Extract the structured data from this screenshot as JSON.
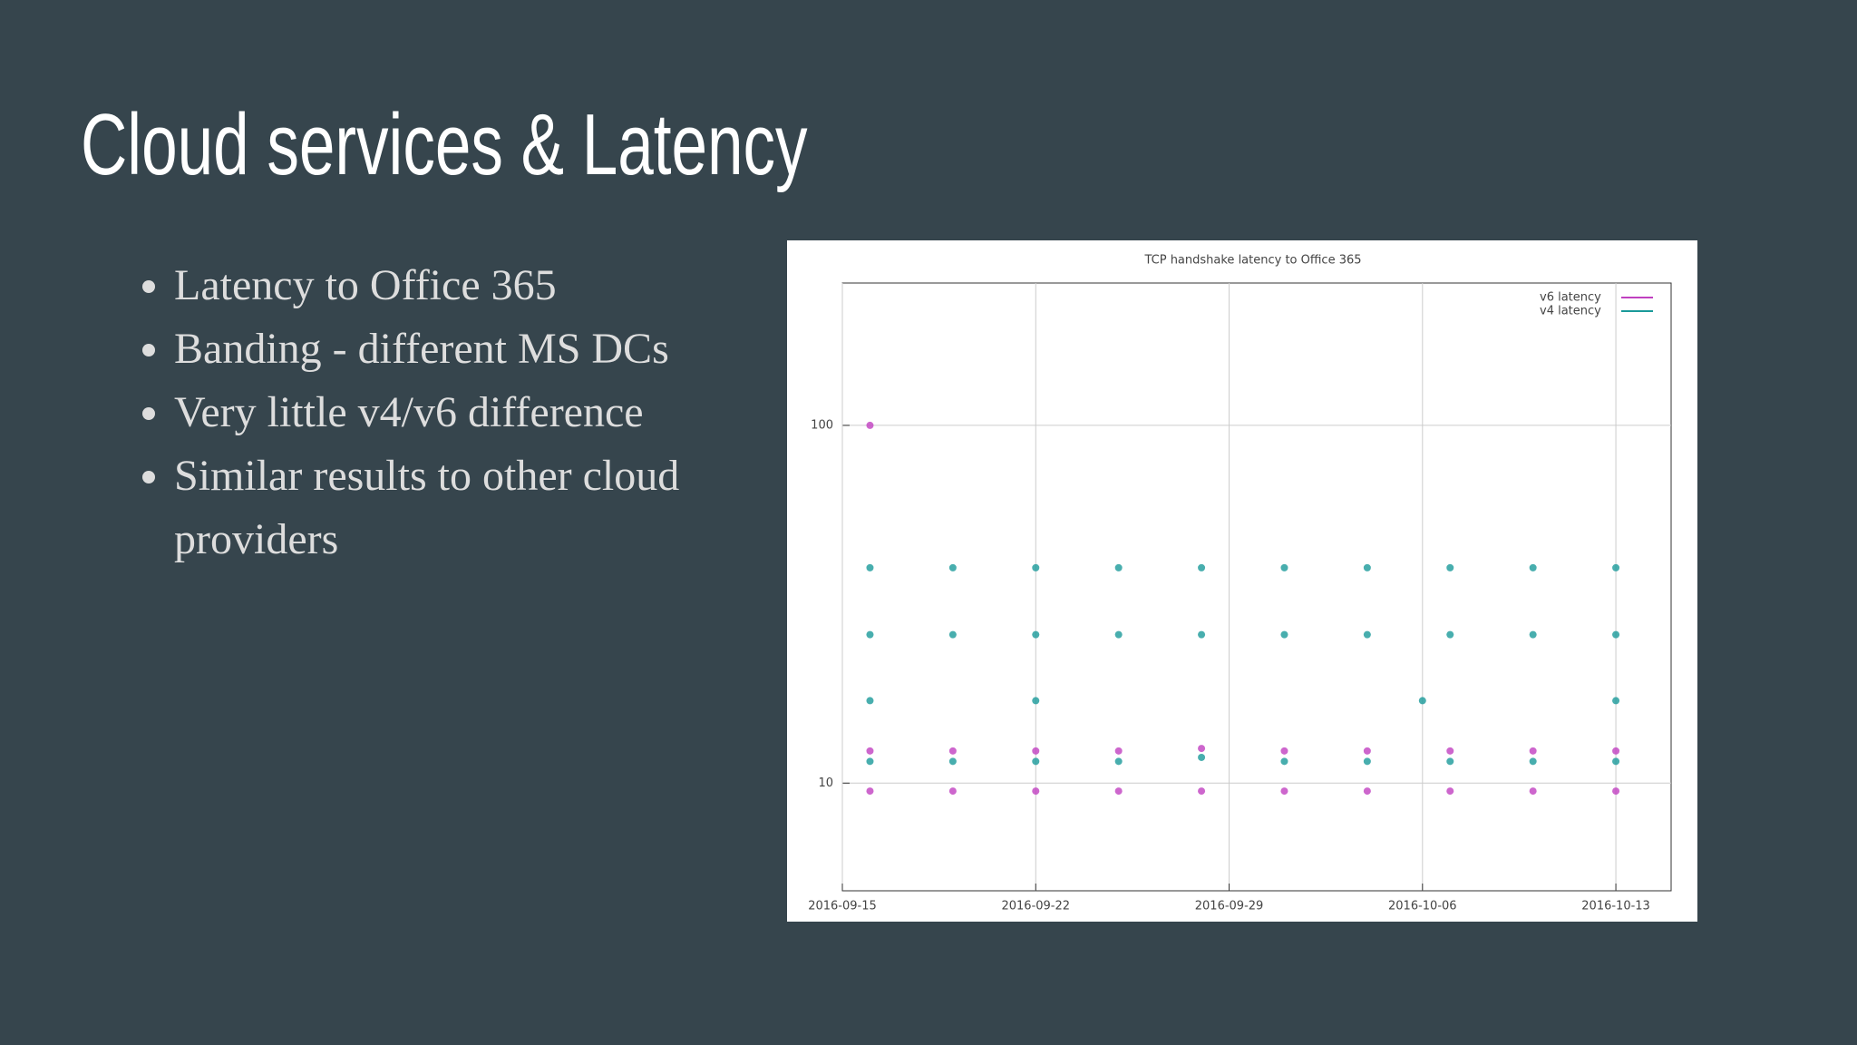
{
  "slide": {
    "title": "Cloud services & Latency",
    "bullets": [
      "Latency to Office 365",
      "Banding - different MS DCs",
      "Very little v4/v6 difference",
      "Similar results to other cloud providers"
    ]
  },
  "chart_data": {
    "type": "scatter",
    "title": "TCP handshake latency to Office 365",
    "log_y": true,
    "grid": true,
    "legend": "top-right",
    "xlim": [
      "2016-09-15",
      "2016-10-15"
    ],
    "xticks": [
      "2016-09-15",
      "2016-09-22",
      "2016-09-29",
      "2016-10-06",
      "2016-10-13"
    ],
    "ylim": [
      5,
      250
    ],
    "yticks": [
      10,
      100
    ],
    "series": [
      {
        "name": "v6 latency",
        "color": "#c040c0",
        "x": [
          "2016-09-16",
          "2016-09-19",
          "2016-09-22",
          "2016-09-25",
          "2016-09-28",
          "2016-10-01",
          "2016-10-04",
          "2016-10-07",
          "2016-10-10",
          "2016-10-13",
          "2016-09-16",
          "2016-09-19",
          "2016-09-22",
          "2016-09-25",
          "2016-09-28",
          "2016-10-01",
          "2016-10-04",
          "2016-10-07",
          "2016-10-10",
          "2016-10-13",
          "2016-09-16"
        ],
        "values": [
          12.3,
          12.3,
          12.3,
          12.3,
          12.5,
          12.3,
          12.3,
          12.3,
          12.3,
          12.3,
          9.5,
          9.5,
          9.5,
          9.5,
          9.5,
          9.5,
          9.5,
          9.5,
          9.5,
          9.5,
          100
        ]
      },
      {
        "name": "v4 latency",
        "color": "#1a9a9a",
        "x": [
          "2016-09-16",
          "2016-09-19",
          "2016-09-22",
          "2016-09-25",
          "2016-09-28",
          "2016-10-01",
          "2016-10-04",
          "2016-10-07",
          "2016-10-10",
          "2016-10-13",
          "2016-09-16",
          "2016-09-19",
          "2016-09-22",
          "2016-09-25",
          "2016-09-28",
          "2016-10-01",
          "2016-10-04",
          "2016-10-07",
          "2016-10-10",
          "2016-10-13",
          "2016-09-16",
          "2016-09-19",
          "2016-09-22",
          "2016-09-25",
          "2016-09-28",
          "2016-10-01",
          "2016-10-04",
          "2016-10-07",
          "2016-10-10",
          "2016-10-13",
          "2016-09-16",
          "2016-09-22",
          "2016-10-06",
          "2016-10-13"
        ],
        "values": [
          11.5,
          11.5,
          11.5,
          11.5,
          11.8,
          11.5,
          11.5,
          11.5,
          11.5,
          11.5,
          40,
          40,
          40,
          40,
          40,
          40,
          40,
          40,
          40,
          40,
          26,
          26,
          26,
          26,
          26,
          26,
          26,
          26,
          26,
          26,
          17,
          17,
          17,
          17
        ]
      }
    ]
  }
}
